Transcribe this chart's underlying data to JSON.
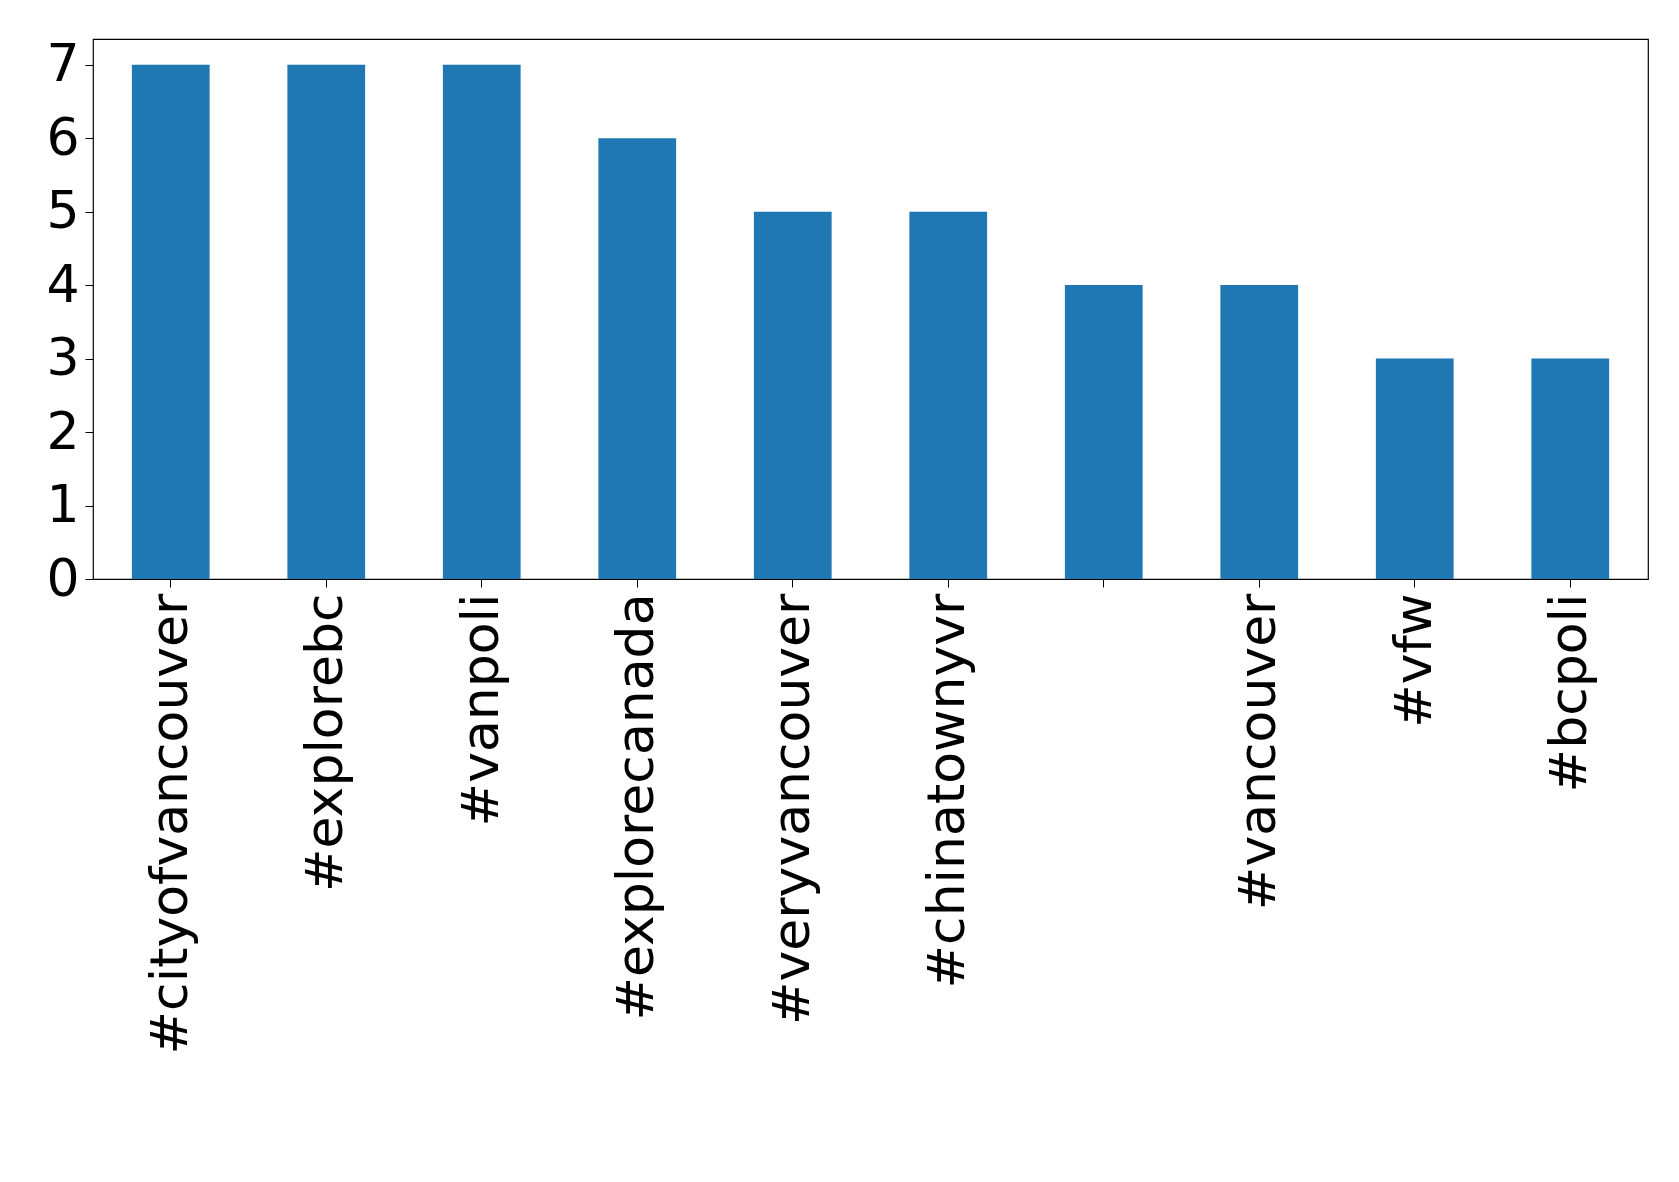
{
  "chart_data": {
    "type": "bar",
    "categories": [
      "#cityofvancouver",
      "#explorebc",
      "#vanpoli",
      "#explorecanada",
      "#veryvancouver",
      "#chinatownyvr",
      null,
      "#vancouver",
      "#vfw",
      "#bcpoli"
    ],
    "values": [
      7,
      7,
      7,
      6,
      5,
      5,
      4,
      4,
      3,
      3
    ],
    "color": "#1f77b4",
    "ylim": [
      0,
      7.35
    ],
    "yticks": [
      0,
      1,
      2,
      3,
      4,
      5,
      6,
      7
    ],
    "grid": false
  }
}
